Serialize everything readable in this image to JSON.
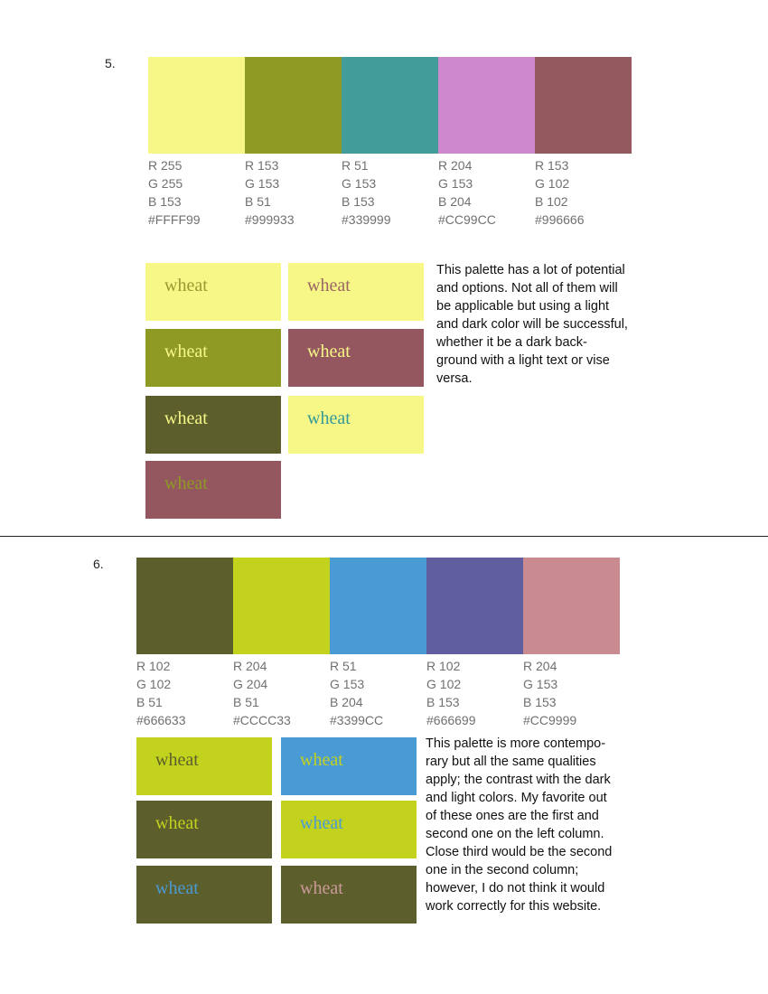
{
  "section5": {
    "number": "5.",
    "swatches": [
      {
        "color": "#FFFF99",
        "r": "R 255",
        "g": "G 255",
        "b": "B 153",
        "hex": "#FFFF99"
      },
      {
        "color": "#999933",
        "r": "R 153",
        "g": "G 153",
        "b": "B 51",
        "hex": "#999933"
      },
      {
        "color": "#339999",
        "r": "R 51",
        "g": "G 153",
        "b": "B 153",
        "hex": "#339999"
      },
      {
        "color": "#CC99CC",
        "r": "R 204",
        "g": "G 153",
        "b": "B 204",
        "hex": "#CC99CC"
      },
      {
        "color": "#996666",
        "r": "R 153",
        "g": "G 102",
        "b": "B 102",
        "hex": "#996666"
      }
    ],
    "tiles": [
      {
        "label": "wheat",
        "bg": "#F7F787",
        "fg": "#999933"
      },
      {
        "label": "wheat",
        "bg": "#F7F787",
        "fg": "#996666"
      },
      {
        "label": "wheat",
        "bg": "#8E9A24",
        "fg": "#F7F787"
      },
      {
        "label": "wheat",
        "bg": "#94575F",
        "fg": "#F7F787"
      },
      {
        "label": "wheat",
        "bg": "#5C5F2C",
        "fg": "#F7F787"
      },
      {
        "label": "wheat",
        "bg": "#F7F787",
        "fg": "#339999"
      },
      {
        "label": "wheat",
        "bg": "#94575F",
        "fg": "#8E9A24"
      }
    ],
    "paragraph": "This palette has a lot of potential\nand options. Not all of them will\nbe applicable but using a light\nand dark color will be successful,\nwhether it be a dark back-\nground with a light text or vise\nversa."
  },
  "section6": {
    "number": "6.",
    "swatches": [
      {
        "color": "#666633",
        "r": "R 102",
        "g": "G 102",
        "b": "B 51",
        "hex": "#666633"
      },
      {
        "color": "#CCCC33",
        "r": "R 204",
        "g": "G 204",
        "b": "B 51",
        "hex": "#CCCC33"
      },
      {
        "color": "#3399CC",
        "r": "R 51",
        "g": "G 153",
        "b": "B 204",
        "hex": "#3399CC"
      },
      {
        "color": "#666699",
        "r": "R 102",
        "g": "G 102",
        "b": "B 153",
        "hex": "#666699"
      },
      {
        "color": "#CC9999",
        "r": "R 204",
        "g": "G 153",
        "b": "B 153",
        "hex": "#CC9999"
      }
    ],
    "tiles": [
      {
        "label": "wheat",
        "bg": "#C3D21D",
        "fg": "#5C5F2C"
      },
      {
        "label": "wheat",
        "bg": "#4A9AD4",
        "fg": "#C3D21D"
      },
      {
        "label": "wheat",
        "bg": "#5C5F2C",
        "fg": "#C3D21D"
      },
      {
        "label": "wheat",
        "bg": "#C3D21D",
        "fg": "#4A9AD4"
      },
      {
        "label": "wheat",
        "bg": "#5C5F2C",
        "fg": "#4A9AD4"
      },
      {
        "label": "wheat",
        "bg": "#5C5F2C",
        "fg": "#CC9999"
      }
    ],
    "paragraph": "This palette is more contempo-\nrary but all the same qualities\napply; the contrast with the dark\nand light colors. My favorite out\nof these ones are the first and\nsecond one on the left column.\nClose third would be the second\none in the second column;\nhowever, I do not think it would\nwork correctly for this website."
  }
}
